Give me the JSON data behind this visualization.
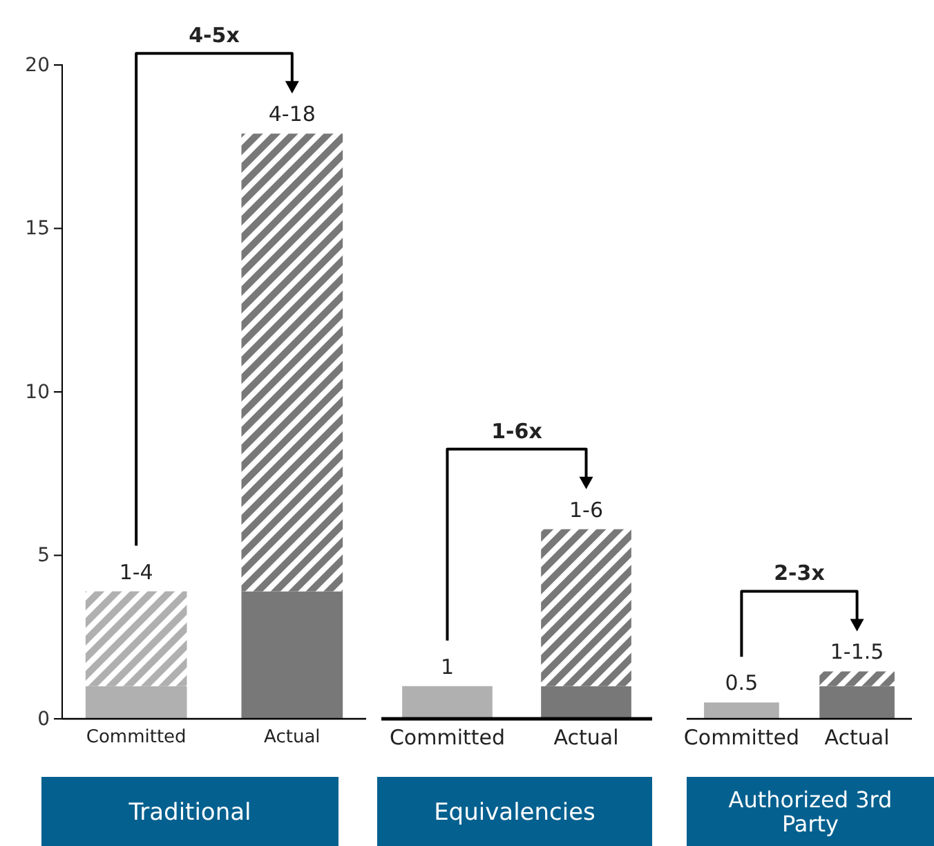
{
  "chart_data": [
    {
      "type": "bar",
      "stacked": true,
      "categories": [
        "Committed",
        "Actual"
      ],
      "xlabel": "Traditional",
      "ylim": [
        0,
        20
      ],
      "yticks": [
        0,
        5,
        10,
        15,
        20
      ],
      "series": [
        {
          "colors": [
            "#b0b0b0",
            "#787878"
          ],
          "values": [
            1,
            3.9
          ]
        },
        {
          "colors": [
            "#b0b0b0",
            "#787878"
          ],
          "values": [
            2.9,
            14
          ]
        }
      ],
      "totals": [
        "1-4",
        "4-18"
      ],
      "annotations": [
        "4-5x"
      ]
    },
    {
      "type": "bar",
      "stacked": true,
      "categories": [
        "Committed",
        "Actual"
      ],
      "xlabel": "Equivalencies",
      "ylim": [
        0,
        20
      ],
      "tick_labels": "x",
      "series": [
        {
          "colors": [
            "#b0b0b0",
            "#787878"
          ],
          "values": [
            1,
            1
          ]
        },
        {
          "colors": [
            null,
            "#787878"
          ],
          "values": [
            null,
            4.8
          ]
        }
      ],
      "totals": [
        "1",
        "1-6"
      ],
      "annotations": [
        "1-6x"
      ]
    },
    {
      "type": "bar",
      "stacked": true,
      "categories": [
        "Committed",
        "Actual"
      ],
      "xlabel": "Authorized 3rd Party",
      "ylim": [
        0,
        20
      ],
      "tick_labels": "x",
      "series": [
        {
          "colors": [
            "#b0b0b0",
            "#787878"
          ],
          "values": [
            0.5,
            1
          ]
        },
        {
          "colors": [
            null,
            "#787878"
          ],
          "values": [
            null,
            0.45
          ]
        }
      ],
      "totals": [
        "0.5",
        "1-1.5"
      ],
      "annotations": [
        "2-3x"
      ]
    }
  ]
}
